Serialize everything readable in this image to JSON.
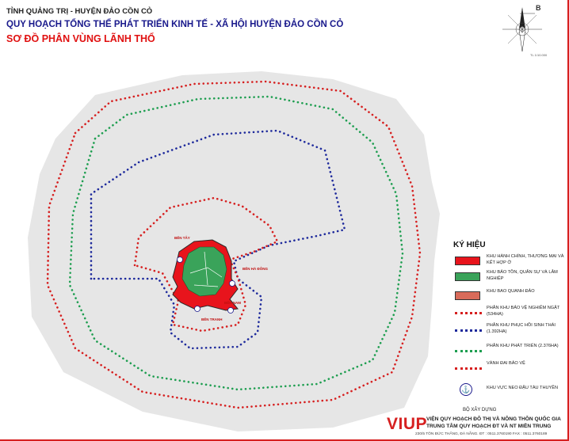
{
  "header": {
    "line1": "TỈNH QUẢNG TRỊ - HUYỆN ĐẢO CỒN CỎ",
    "line2": "QUY HOẠCH TỔNG THỂ PHÁT TRIỂN KINH TẾ - XÃ HỘI HUYỆN ĐẢO CỒN CỎ",
    "line3": "SƠ ĐỒ PHÂN VÙNG LÃNH THỔ"
  },
  "compass": {
    "north_label": "B",
    "note": "TL 1/10.000"
  },
  "map": {
    "place_labels": [
      "BẾN TÂY",
      "BẾN HÀ ĐÔNG",
      "BẾN NAM",
      "BẾN TRANH"
    ],
    "colors": {
      "sea": "#e8e8e8",
      "admin_zone": "#e8141c",
      "forest_zone": "#3aa35a",
      "coast_zone": "#d96b5a",
      "strict_protection": "#d62020",
      "eco_restoration": "#1e2a9c",
      "development": "#1e9e50",
      "buffer_ring": "#d62020"
    }
  },
  "legend": {
    "title": "KÝ HIỆU",
    "items": [
      {
        "label": "KHU HÀNH CHÍNH, THƯƠNG MẠI VÀ KẾT HỢP Ở",
        "kind": "swatch",
        "color": "#e8141c"
      },
      {
        "label": "KHU BẢO TỒN, QUÂN SỰ VÀ LÂM NGHIỆP",
        "kind": "swatch",
        "color": "#3aa35a"
      },
      {
        "label": "KHU BAO QUANH ĐẢO",
        "kind": "swatch",
        "color": "#d96b5a"
      },
      {
        "label": "PHÂN KHU BẢO VỆ NGHIÊM NGẶT (534HA)",
        "kind": "dots",
        "color": "#d62020"
      },
      {
        "label": "PHÂN KHU PHỤC HỒI SINH THÁI (1.392HA)",
        "kind": "dots",
        "color": "#1e2a9c"
      },
      {
        "label": "PHÂN KHU PHÁT TRIỂN (2.376HA)",
        "kind": "dots",
        "color": "#1e9e50"
      },
      {
        "label": "VÀNH ĐAI BẢO VỆ",
        "kind": "dots",
        "color": "#d62020"
      },
      {
        "label": "KHU VỰC NEO ĐẬU TÀU THUYỀN",
        "kind": "anchor",
        "color": "#1a1a8c"
      }
    ]
  },
  "footer": {
    "ministry": "BỘ XÂY DỰNG",
    "logo": "VIUP",
    "institute_line1": "VIỆN QUY HOẠCH ĐÔ THỊ VÀ NÔNG THÔN QUỐC GIA",
    "institute_line2": "TRUNG TÂM QUY HOẠCH ĐT VÀ NT MIỀN TRUNG",
    "address": "230/5 TÔN ĐỨC THẮNG, ĐÀ NẴNG.  ĐT : 0511.3760190   FAX : 0511.3760189"
  }
}
